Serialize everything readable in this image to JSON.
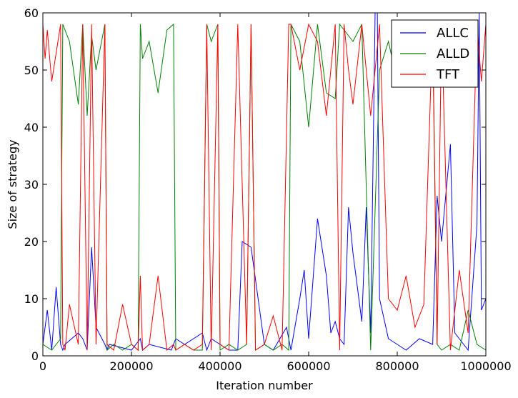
{
  "chart_data": {
    "type": "line",
    "title": "",
    "xlabel": "Iteration number",
    "ylabel": "Size of strategy",
    "xlim": [
      0,
      1000000
    ],
    "ylim": [
      0,
      60
    ],
    "xticks": [
      0,
      200000,
      400000,
      600000,
      800000,
      1000000
    ],
    "xtick_labels": [
      "0",
      "200000",
      "400000",
      "600000",
      "800000",
      "1000000"
    ],
    "yticks": [
      0,
      10,
      20,
      30,
      40,
      50,
      60
    ],
    "ytick_labels": [
      "0",
      "10",
      "20",
      "30",
      "40",
      "50",
      "60"
    ],
    "grid": false,
    "legend_position": "top-right",
    "series": [
      {
        "name": "ALLC",
        "color": "#0000ff",
        "x": [
          0,
          10000,
          20000,
          30000,
          40000,
          45000,
          50000,
          80000,
          90000,
          100000,
          110000,
          120000,
          140000,
          145000,
          150000,
          200000,
          220000,
          225000,
          240000,
          290000,
          300000,
          320000,
          360000,
          370000,
          380000,
          400000,
          420000,
          440000,
          450000,
          470000,
          500000,
          520000,
          550000,
          560000,
          580000,
          590000,
          600000,
          620000,
          640000,
          650000,
          660000,
          670000,
          680000,
          690000,
          700000,
          720000,
          730000,
          740000,
          750000,
          755000,
          760000,
          780000,
          800000,
          820000,
          850000,
          880000,
          890000,
          900000,
          920000,
          930000,
          950000,
          960000,
          980000,
          985000,
          990000,
          1000000
        ],
        "y": [
          2,
          8,
          1,
          12,
          2,
          1,
          2,
          4,
          3,
          1,
          19,
          5,
          2,
          1,
          2,
          1,
          3,
          1,
          2,
          1,
          3,
          2,
          4,
          1,
          3,
          2,
          1,
          1,
          20,
          19,
          2,
          1,
          5,
          1,
          10,
          15,
          3,
          24,
          14,
          4,
          6,
          3,
          2,
          26,
          18,
          6,
          26,
          4,
          60,
          60,
          10,
          3,
          2,
          1,
          3,
          2,
          28,
          20,
          37,
          4,
          2,
          1,
          23,
          60,
          8,
          10
        ]
      },
      {
        "name": "ALLD",
        "color": "#008000",
        "x": [
          0,
          20000,
          40000,
          45000,
          60000,
          80000,
          90000,
          100000,
          110000,
          120000,
          140000,
          145000,
          160000,
          180000,
          200000,
          215000,
          220000,
          225000,
          240000,
          260000,
          280000,
          295000,
          300000,
          320000,
          340000,
          360000,
          370000,
          380000,
          395000,
          400000,
          420000,
          440000,
          460000,
          470000,
          480000,
          500000,
          520000,
          540000,
          555000,
          560000,
          580000,
          600000,
          620000,
          640000,
          660000,
          670000,
          680000,
          700000,
          720000,
          740000,
          760000,
          780000,
          800000,
          820000,
          840000,
          860000,
          880000,
          890000,
          900000,
          920000,
          940000,
          960000,
          980000,
          1000000
        ],
        "y": [
          2,
          1,
          3,
          58,
          55,
          44,
          58,
          42,
          56,
          50,
          58,
          1,
          2,
          1,
          2,
          1,
          58,
          52,
          55,
          46,
          57,
          58,
          1,
          2,
          1,
          1,
          58,
          55,
          58,
          1,
          2,
          1,
          2,
          58,
          1,
          2,
          1,
          2,
          1,
          58,
          55,
          40,
          58,
          46,
          45,
          58,
          57,
          55,
          58,
          1,
          50,
          55,
          48,
          50,
          58,
          55,
          56,
          2,
          1,
          2,
          1,
          8,
          2,
          1
        ]
      },
      {
        "name": "TFT",
        "color": "#ff0000",
        "x": [
          0,
          5000,
          10000,
          20000,
          40000,
          45000,
          50000,
          60000,
          80000,
          90000,
          100000,
          110000,
          120000,
          140000,
          145000,
          160000,
          180000,
          200000,
          215000,
          220000,
          225000,
          240000,
          260000,
          280000,
          295000,
          300000,
          320000,
          340000,
          360000,
          370000,
          380000,
          395000,
          400000,
          420000,
          440000,
          460000,
          470000,
          480000,
          500000,
          520000,
          540000,
          555000,
          560000,
          580000,
          600000,
          620000,
          640000,
          660000,
          670000,
          680000,
          690000,
          700000,
          720000,
          740000,
          760000,
          780000,
          800000,
          820000,
          840000,
          860000,
          880000,
          890000,
          900000,
          920000,
          940000,
          960000,
          980000,
          990000,
          1000000
        ],
        "y": [
          58,
          52,
          57,
          48,
          58,
          2,
          1,
          9,
          2,
          58,
          1,
          58,
          2,
          58,
          2,
          1,
          9,
          2,
          1,
          14,
          1,
          2,
          14,
          1,
          2,
          1,
          2,
          1,
          2,
          58,
          1,
          58,
          2,
          1,
          58,
          2,
          58,
          1,
          2,
          7,
          1,
          58,
          58,
          50,
          58,
          55,
          42,
          58,
          1,
          58,
          50,
          44,
          58,
          42,
          58,
          10,
          8,
          14,
          5,
          9,
          58,
          2,
          58,
          1,
          15,
          4,
          58,
          48,
          58
        ]
      }
    ]
  }
}
